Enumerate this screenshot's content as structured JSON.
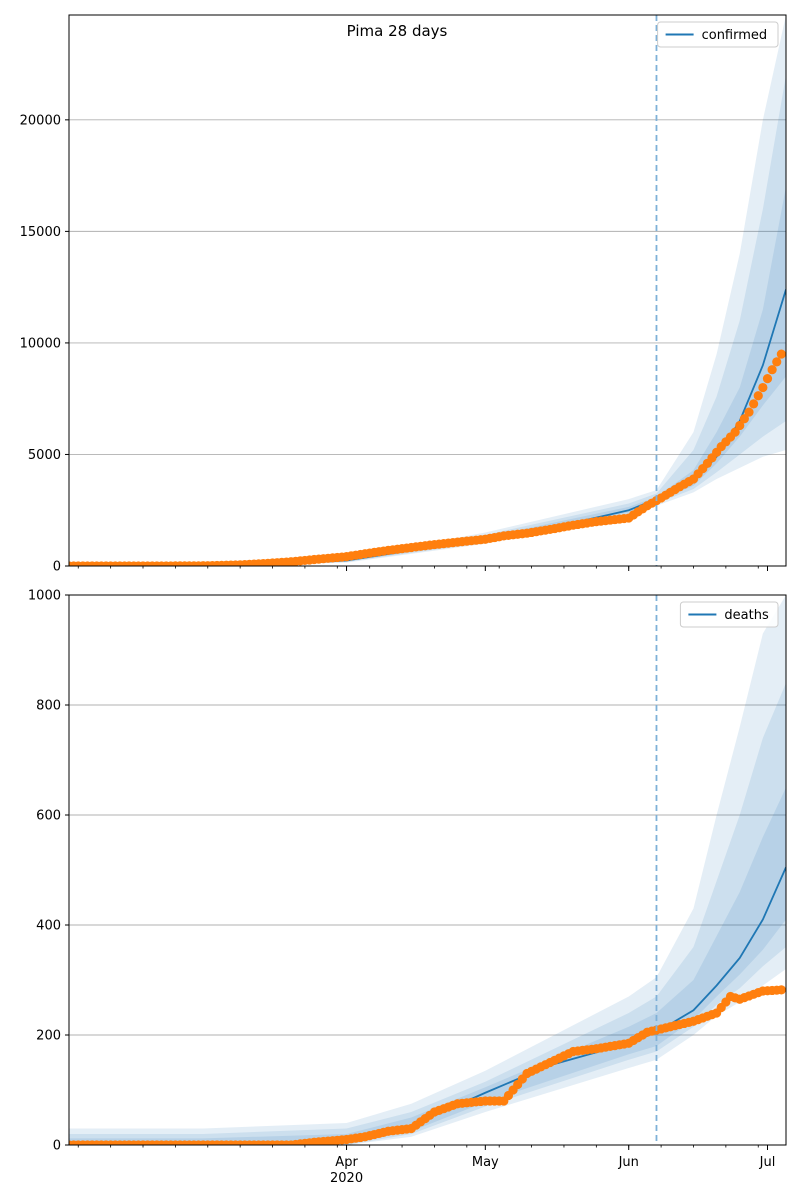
{
  "figure": {
    "title": "Pima 28 days"
  },
  "chart_data": [
    {
      "type": "line",
      "panel": "top",
      "title": "Pima 28 days",
      "legend": {
        "entries": [
          "confirmed"
        ],
        "placement": "upper right"
      },
      "xaxis": {
        "kind": "date",
        "range": [
          "2020-02-01",
          "2020-07-05"
        ],
        "major_ticks": [
          {
            "date": "2020-04-01",
            "label": "Apr"
          },
          {
            "date": "2020-05-01",
            "label": "May"
          },
          {
            "date": "2020-06-01",
            "label": "Jun"
          },
          {
            "date": "2020-07-01",
            "label": "Jul"
          }
        ],
        "year_label": "2020",
        "show_tick_labels": false
      },
      "yaxis": {
        "range": [
          0,
          24700
        ],
        "ticks": [
          0,
          5000,
          10000,
          15000,
          20000
        ]
      },
      "grid": "horizontal",
      "vline": {
        "date": "2020-06-07",
        "style": "dashed",
        "color": "#7fb1d8"
      },
      "colors": {
        "model": "#1f77b4",
        "observed": "#ff7f0e",
        "band": "#1f77b4"
      },
      "series": [
        {
          "name": "confirmed",
          "kind": "model-median",
          "x": [
            "2020-02-01",
            "2020-03-01",
            "2020-03-15",
            "2020-04-01",
            "2020-04-15",
            "2020-05-01",
            "2020-05-15",
            "2020-06-01",
            "2020-06-07",
            "2020-06-15",
            "2020-06-20",
            "2020-06-25",
            "2020-06-30",
            "2020-07-05"
          ],
          "y": [
            0,
            10,
            50,
            250,
            700,
            1200,
            1700,
            2500,
            3000,
            3800,
            4900,
            6500,
            9000,
            12400
          ]
        },
        {
          "name": "confirmed-observed",
          "kind": "observed-points",
          "x": [
            "2020-02-01",
            "2020-02-10",
            "2020-02-20",
            "2020-03-01",
            "2020-03-05",
            "2020-03-10",
            "2020-03-15",
            "2020-03-20",
            "2020-03-25",
            "2020-04-01",
            "2020-04-05",
            "2020-04-10",
            "2020-04-15",
            "2020-04-20",
            "2020-04-25",
            "2020-05-01",
            "2020-05-05",
            "2020-05-10",
            "2020-05-15",
            "2020-05-20",
            "2020-05-25",
            "2020-06-01",
            "2020-06-05",
            "2020-06-08",
            "2020-06-12",
            "2020-06-15",
            "2020-06-18",
            "2020-06-21",
            "2020-06-24",
            "2020-06-27",
            "2020-06-30",
            "2020-07-02",
            "2020-07-04"
          ],
          "y": [
            0,
            0,
            0,
            10,
            30,
            60,
            120,
            190,
            290,
            420,
            550,
            700,
            830,
            960,
            1070,
            1200,
            1350,
            1470,
            1640,
            1830,
            1990,
            2150,
            2700,
            3050,
            3550,
            3900,
            4600,
            5350,
            6000,
            6900,
            8000,
            8800,
            9500
          ]
        }
      ],
      "bands": [
        {
          "level": "outer",
          "x": [
            "2020-02-01",
            "2020-03-01",
            "2020-04-01",
            "2020-05-01",
            "2020-06-01",
            "2020-06-07",
            "2020-06-15",
            "2020-06-20",
            "2020-06-25",
            "2020-06-30",
            "2020-07-05"
          ],
          "lower": [
            0,
            0,
            150,
            1000,
            2200,
            2700,
            3300,
            3900,
            4400,
            4900,
            5200
          ],
          "upper": [
            20,
            30,
            350,
            1500,
            3000,
            3400,
            6000,
            9500,
            14000,
            20000,
            24700
          ]
        },
        {
          "level": "middle",
          "x": [
            "2020-02-01",
            "2020-03-01",
            "2020-04-01",
            "2020-05-01",
            "2020-06-01",
            "2020-06-07",
            "2020-06-15",
            "2020-06-20",
            "2020-06-25",
            "2020-06-30",
            "2020-07-05"
          ],
          "lower": [
            0,
            0,
            180,
            1050,
            2300,
            2800,
            3450,
            4200,
            5000,
            5800,
            6500
          ],
          "upper": [
            15,
            25,
            320,
            1400,
            2800,
            3250,
            5200,
            7600,
            11000,
            16000,
            22000
          ]
        },
        {
          "level": "inner",
          "x": [
            "2020-02-01",
            "2020-03-01",
            "2020-04-01",
            "2020-05-01",
            "2020-06-01",
            "2020-06-07",
            "2020-06-15",
            "2020-06-20",
            "2020-06-25",
            "2020-06-30",
            "2020-07-05"
          ],
          "lower": [
            0,
            5,
            210,
            1120,
            2400,
            2900,
            3600,
            4600,
            5800,
            7200,
            8500
          ],
          "upper": [
            12,
            18,
            290,
            1300,
            2650,
            3100,
            4300,
            6000,
            8000,
            11500,
            17000
          ]
        }
      ]
    },
    {
      "type": "line",
      "panel": "bottom",
      "legend": {
        "entries": [
          "deaths"
        ],
        "placement": "upper right"
      },
      "xaxis": {
        "kind": "date",
        "range": [
          "2020-02-01",
          "2020-07-05"
        ],
        "major_ticks": [
          {
            "date": "2020-04-01",
            "label": "Apr"
          },
          {
            "date": "2020-05-01",
            "label": "May"
          },
          {
            "date": "2020-06-01",
            "label": "Jun"
          },
          {
            "date": "2020-07-01",
            "label": "Jul"
          }
        ],
        "year_label": "2020",
        "show_tick_labels": true
      },
      "yaxis": {
        "range": [
          0,
          1000
        ],
        "ticks": [
          0,
          200,
          400,
          600,
          800,
          1000
        ]
      },
      "grid": "horizontal",
      "vline": {
        "date": "2020-06-07",
        "style": "dashed",
        "color": "#7fb1d8"
      },
      "colors": {
        "model": "#1f77b4",
        "observed": "#ff7f0e",
        "band": "#1f77b4"
      },
      "series": [
        {
          "name": "deaths",
          "kind": "model-median",
          "x": [
            "2020-02-01",
            "2020-03-15",
            "2020-04-01",
            "2020-04-15",
            "2020-05-01",
            "2020-05-15",
            "2020-06-01",
            "2020-06-07",
            "2020-06-15",
            "2020-06-20",
            "2020-06-25",
            "2020-06-30",
            "2020-07-05"
          ],
          "y": [
            0,
            2,
            8,
            35,
            95,
            145,
            185,
            205,
            245,
            290,
            340,
            410,
            505
          ]
        },
        {
          "name": "deaths-observed",
          "kind": "observed-points",
          "x": [
            "2020-02-01",
            "2020-02-10",
            "2020-02-20",
            "2020-03-01",
            "2020-03-10",
            "2020-03-20",
            "2020-03-25",
            "2020-04-01",
            "2020-04-05",
            "2020-04-10",
            "2020-04-15",
            "2020-04-20",
            "2020-04-25",
            "2020-05-01",
            "2020-05-05",
            "2020-05-10",
            "2020-05-15",
            "2020-05-20",
            "2020-05-25",
            "2020-06-01",
            "2020-06-05",
            "2020-06-10",
            "2020-06-15",
            "2020-06-20",
            "2020-06-23",
            "2020-06-25",
            "2020-06-30",
            "2020-07-04"
          ],
          "y": [
            0,
            0,
            0,
            0,
            0,
            0,
            5,
            10,
            15,
            25,
            30,
            60,
            75,
            80,
            80,
            130,
            150,
            170,
            175,
            185,
            205,
            215,
            225,
            240,
            270,
            265,
            280,
            282
          ]
        }
      ],
      "bands": [
        {
          "level": "outer",
          "x": [
            "2020-02-01",
            "2020-03-01",
            "2020-04-01",
            "2020-04-15",
            "2020-05-01",
            "2020-06-01",
            "2020-06-07",
            "2020-06-15",
            "2020-06-20",
            "2020-06-25",
            "2020-06-30",
            "2020-07-05"
          ],
          "lower": [
            0,
            0,
            0,
            15,
            60,
            140,
            155,
            200,
            235,
            260,
            290,
            320
          ],
          "upper": [
            30,
            30,
            40,
            75,
            135,
            270,
            305,
            430,
            600,
            760,
            930,
            1000
          ]
        },
        {
          "level": "middle",
          "x": [
            "2020-02-01",
            "2020-03-01",
            "2020-04-01",
            "2020-04-15",
            "2020-05-01",
            "2020-06-01",
            "2020-06-07",
            "2020-06-15",
            "2020-06-20",
            "2020-06-25",
            "2020-06-30",
            "2020-07-05"
          ],
          "lower": [
            0,
            0,
            0,
            20,
            70,
            155,
            170,
            215,
            255,
            285,
            325,
            360
          ],
          "upper": [
            20,
            20,
            30,
            60,
            115,
            240,
            270,
            360,
            480,
            600,
            740,
            840
          ]
        },
        {
          "level": "inner",
          "x": [
            "2020-02-01",
            "2020-03-01",
            "2020-04-01",
            "2020-04-15",
            "2020-05-01",
            "2020-06-01",
            "2020-06-07",
            "2020-06-15",
            "2020-06-20",
            "2020-06-25",
            "2020-06-30",
            "2020-07-05"
          ],
          "lower": [
            0,
            0,
            2,
            25,
            78,
            165,
            180,
            228,
            270,
            310,
            355,
            410
          ],
          "upper": [
            12,
            12,
            20,
            50,
            105,
            215,
            240,
            300,
            380,
            460,
            560,
            650
          ]
        }
      ]
    }
  ]
}
